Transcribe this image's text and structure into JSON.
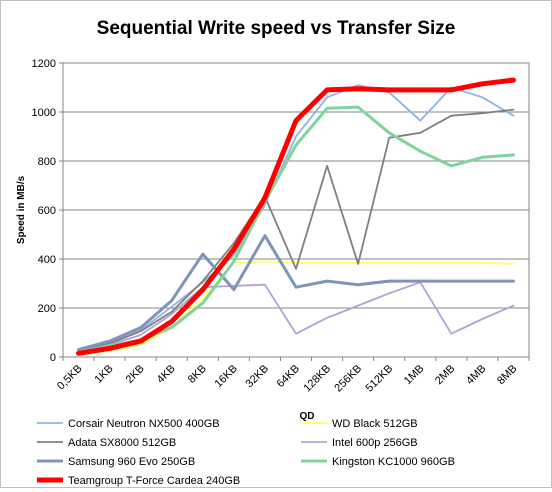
{
  "chart_data": {
    "type": "line",
    "title": "Sequential Write speed vs Transfer Size",
    "xlabel": "QD",
    "ylabel": "Speed in MB/s",
    "ylim": [
      0,
      1200
    ],
    "yticks": [
      0,
      200,
      400,
      600,
      800,
      1000,
      1200
    ],
    "grid": true,
    "legend_position": "bottom",
    "categories": [
      "0,5KB",
      "1KB",
      "2KB",
      "4KB",
      "8KB",
      "16KB",
      "32KB",
      "64KB",
      "128KB",
      "256KB",
      "512KB",
      "1MB",
      "2MB",
      "4MB",
      "8MB"
    ],
    "series": [
      {
        "name": "Corsair Neutron NX500 400GB",
        "color": "#8db4e2",
        "values": [
          30,
          60,
          110,
          205,
          305,
          415,
          620,
          900,
          1060,
          1110,
          1080,
          965,
          1100,
          1060,
          985
        ]
      },
      {
        "name": "WD Black 512GB",
        "color": "#ffff66",
        "values": [
          10,
          25,
          50,
          120,
          240,
          385,
          390,
          385,
          385,
          385,
          385,
          385,
          385,
          385,
          380
        ]
      },
      {
        "name": "Adata SX8000 512GB",
        "color": "#7f7f7f",
        "values": [
          25,
          55,
          105,
          185,
          310,
          465,
          655,
          360,
          780,
          380,
          895,
          915,
          985,
          995,
          1010
        ]
      },
      {
        "name": "Intel 600p 256GB",
        "color": "#b4a0d4",
        "values": [
          20,
          50,
          90,
          175,
          285,
          290,
          295,
          95,
          160,
          210,
          260,
          305,
          95,
          155,
          210
        ]
      },
      {
        "name": "Samsung 960 Evo 250GB",
        "color": "#8093b8",
        "values": [
          30,
          65,
          120,
          230,
          420,
          275,
          495,
          285,
          310,
          295,
          310,
          310,
          310,
          310,
          310
        ]
      },
      {
        "name": "Kingston KC1000 960GB",
        "color": "#7fd49c",
        "values": [
          20,
          45,
          70,
          120,
          220,
          390,
          635,
          865,
          1015,
          1020,
          915,
          840,
          780,
          815,
          825
        ]
      },
      {
        "name": "Teamgroup T-Force Cardea 240GB",
        "color": "#ff0000",
        "values": [
          15,
          35,
          65,
          145,
          275,
          440,
          650,
          965,
          1090,
          1095,
          1090,
          1090,
          1090,
          1115,
          1130
        ]
      }
    ]
  }
}
